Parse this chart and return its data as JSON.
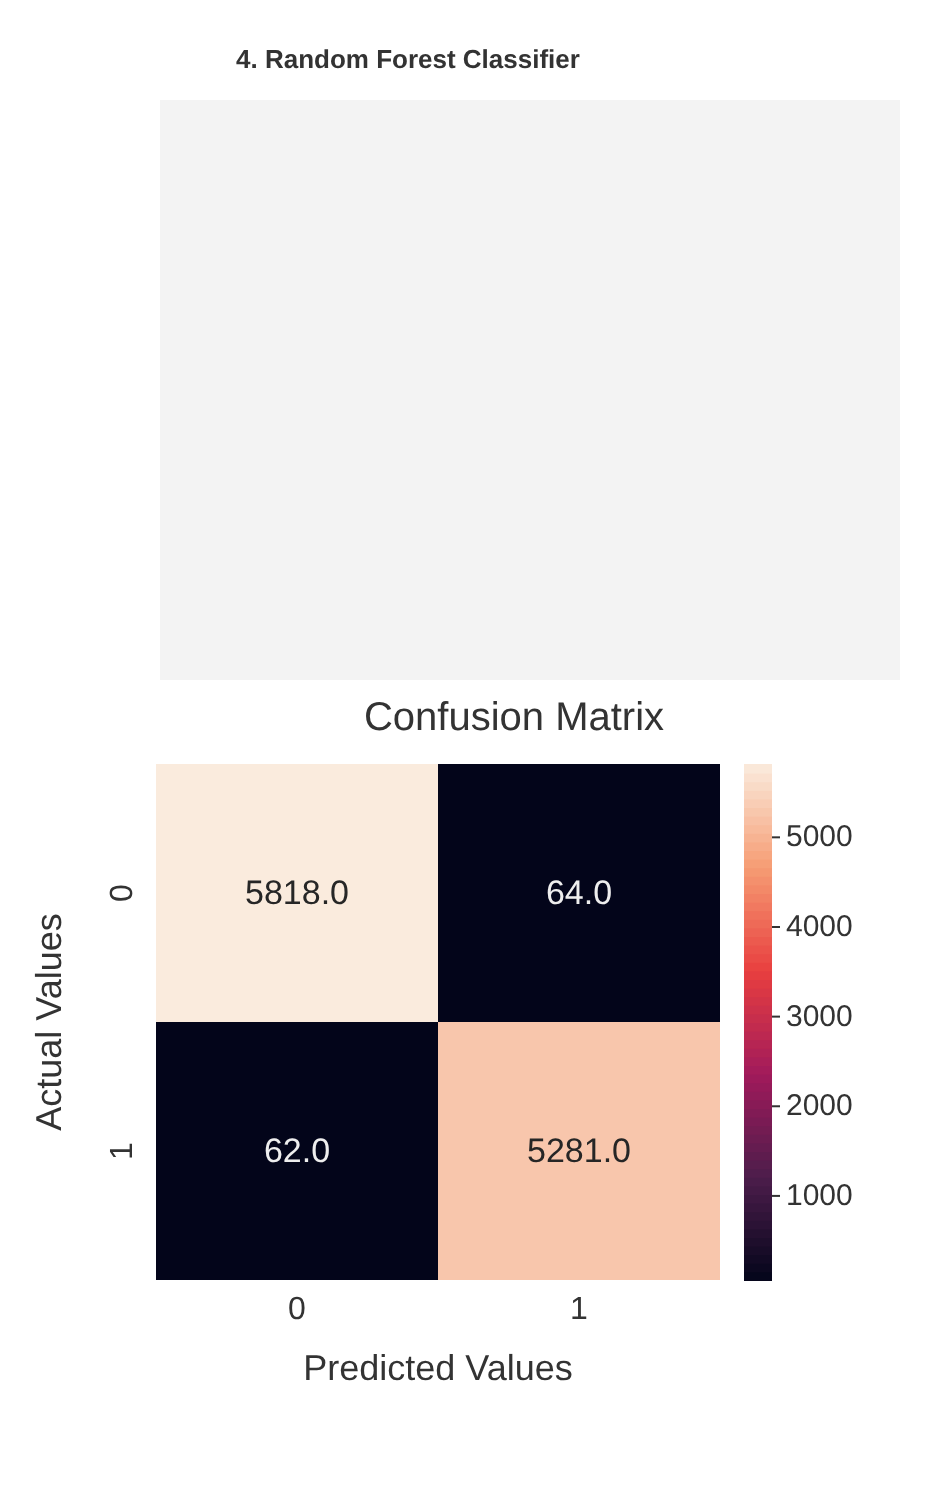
{
  "chart_data": {
    "type": "heatmap",
    "title": "Confusion Matrix",
    "xlabel": "Predicted Values",
    "ylabel": "Actual Values",
    "annotations": [
      "4. Random Forest Classifier"
    ],
    "categories": [
      "0",
      "1"
    ],
    "y_categories": [
      "0",
      "1"
    ],
    "cells": [
      [
        5818,
        64
      ],
      [
        62,
        5281
      ]
    ],
    "cell_labels": [
      [
        "5818.0",
        "64.0"
      ],
      [
        "62.0",
        "5281.0"
      ]
    ],
    "clim": [
      62,
      5818
    ],
    "cticks": [
      1000,
      2000,
      3000,
      4000,
      5000
    ]
  }
}
